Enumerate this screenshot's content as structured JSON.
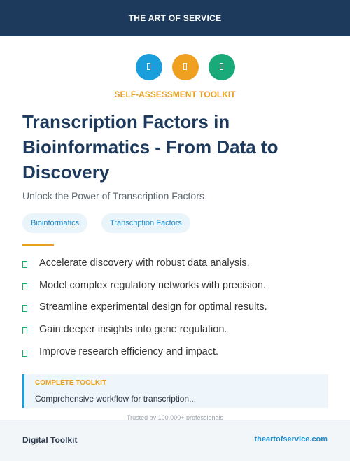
{
  "header": {
    "brand": "THE ART OF SERVICE"
  },
  "kicker": "SELF-ASSESSMENT TOOLKIT",
  "title": "Transcription Factors in Bioinformatics - From Data to Discovery",
  "subtitle": "Unlock the Power of Transcription Factors",
  "tags": [
    "Bioinformatics",
    "Transcription Factors"
  ],
  "benefits": [
    "Accelerate discovery with robust data analysis.",
    "Model complex regulatory networks with precision.",
    "Streamline experimental design for optimal results.",
    "Gain deeper insights into gene regulation.",
    "Improve research efficiency and impact."
  ],
  "callout": {
    "label": "COMPLETE TOOLKIT",
    "text": "Comprehensive workflow for transcription..."
  },
  "trust": "Trusted by 100,000+ professionals",
  "footer": {
    "left": "Digital Toolkit",
    "right": "theartofservice.com"
  }
}
